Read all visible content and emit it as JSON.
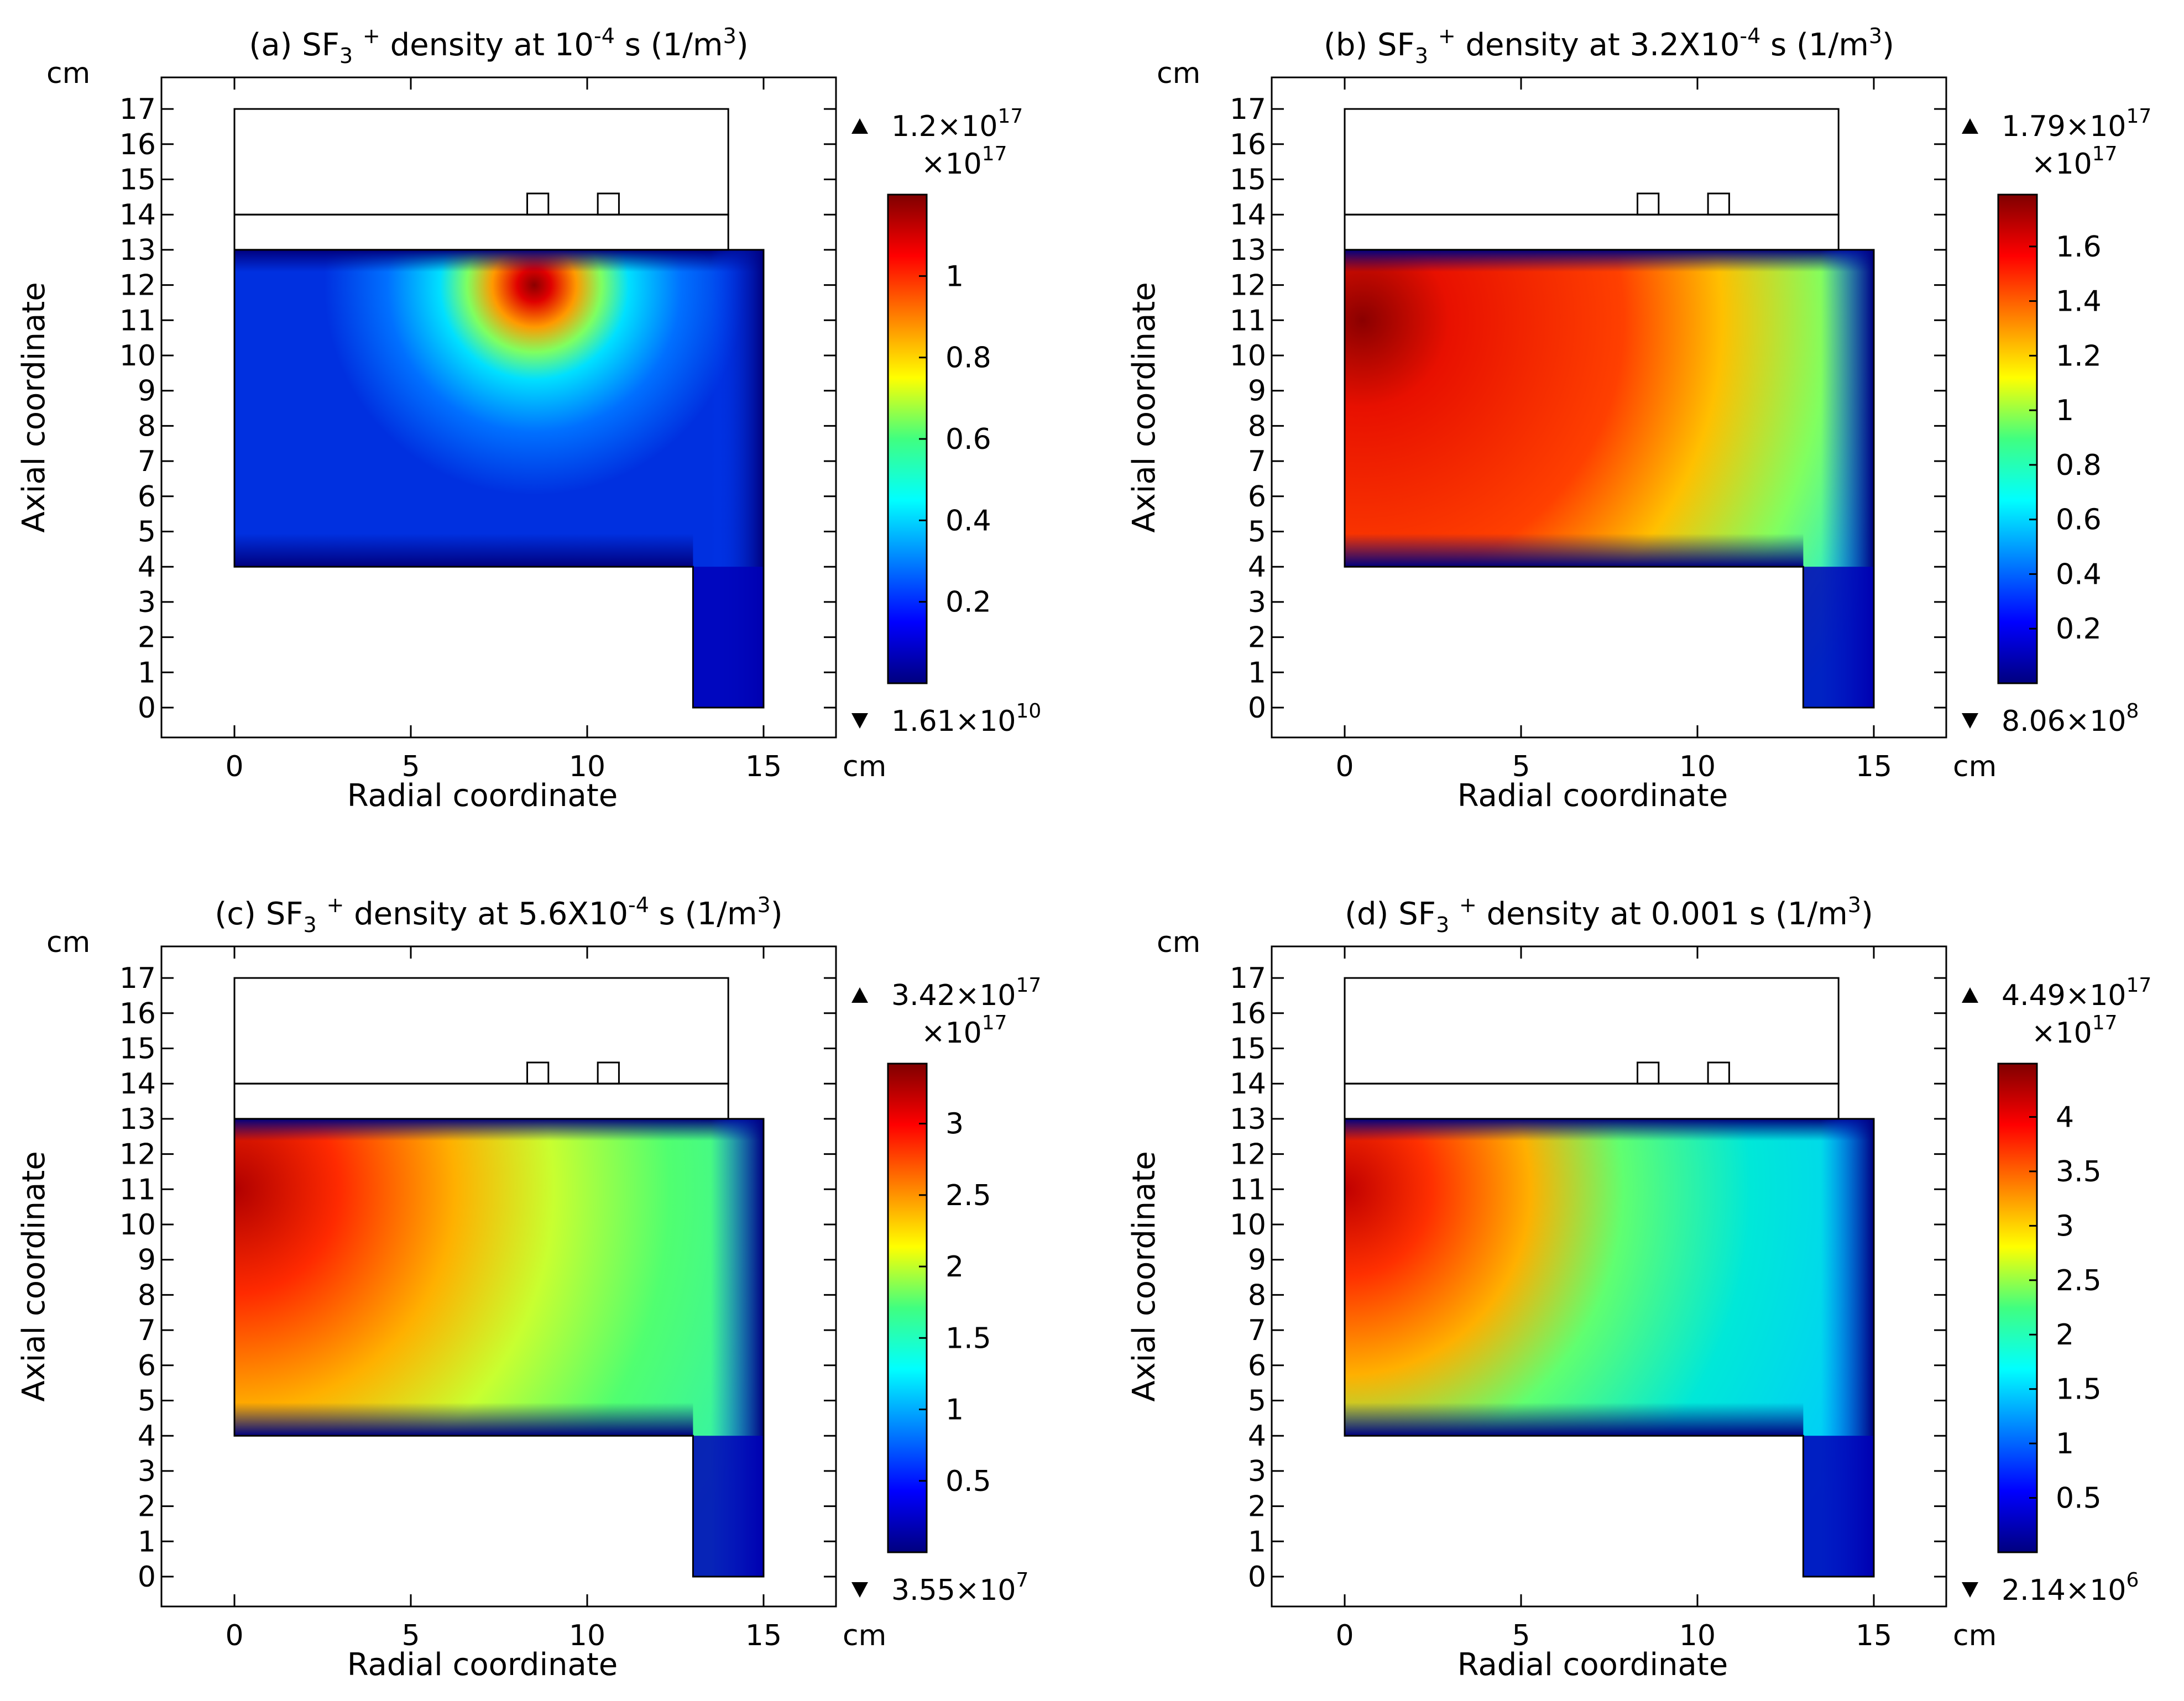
{
  "colorscale": [
    "#00007f",
    "#0000ff",
    "#0080ff",
    "#00ffff",
    "#40ff80",
    "#ffff00",
    "#ff8000",
    "#ff0000",
    "#7f0000"
  ],
  "chart_data": [
    {
      "type": "heatmap",
      "title": {
        "pre": "(a) SF",
        "sub": "3",
        "sup1": "+",
        "mid": " density at 10",
        "sup2": "-4",
        "post": " s (1/m",
        "sup3": "3",
        "end": ")"
      },
      "xlabel": "Radial coordinate",
      "ylabel": "Axial coordinate",
      "x_unit": "cm",
      "y_unit": "cm",
      "xlim": [
        -2,
        17
      ],
      "ylim": [
        -0.8,
        17.8
      ],
      "x_ticks": [
        0,
        5,
        10,
        15
      ],
      "y_ticks": [
        0,
        1,
        2,
        3,
        4,
        5,
        6,
        7,
        8,
        9,
        10,
        11,
        12,
        13,
        14,
        15,
        16,
        17
      ],
      "colorbar": {
        "max_mark": "1.2×10",
        "max_exp": "17",
        "min_mark": "1.61×10",
        "min_exp": "10",
        "multiplier": "×10",
        "multiplier_exp": "17",
        "range": [
          0,
          1.2
        ],
        "ticks": [
          "0.2",
          "0.4",
          "0.6",
          "0.8",
          "1"
        ],
        "tick_values": [
          0.2,
          0.4,
          0.6,
          0.8,
          1.0
        ]
      },
      "peak": {
        "r": 8.5,
        "z": 12.0,
        "value": 1.2
      }
    },
    {
      "type": "heatmap",
      "title": {
        "pre": "(b) SF",
        "sub": "3",
        "sup1": "+",
        "mid": " density at 3.2X10",
        "sup2": "-4",
        "post": " s (1/m",
        "sup3": "3",
        "end": ")"
      },
      "xlabel": "Radial coordinate",
      "ylabel": "Axial coordinate",
      "x_unit": "cm",
      "y_unit": "cm",
      "xlim": [
        -2,
        17
      ],
      "ylim": [
        -0.8,
        17.8
      ],
      "x_ticks": [
        0,
        5,
        10,
        15
      ],
      "y_ticks": [
        0,
        1,
        2,
        3,
        4,
        5,
        6,
        7,
        8,
        9,
        10,
        11,
        12,
        13,
        14,
        15,
        16,
        17
      ],
      "colorbar": {
        "max_mark": "1.79×10",
        "max_exp": "17",
        "min_mark": "8.06×10",
        "min_exp": "8",
        "multiplier": "×10",
        "multiplier_exp": "17",
        "range": [
          0,
          1.79
        ],
        "ticks": [
          "0.2",
          "0.4",
          "0.6",
          "0.8",
          "1",
          "1.2",
          "1.4",
          "1.6"
        ],
        "tick_values": [
          0.2,
          0.4,
          0.6,
          0.8,
          1.0,
          1.2,
          1.4,
          1.6
        ]
      },
      "peak": {
        "r": 0.5,
        "z": 11.0,
        "value": 1.79
      }
    },
    {
      "type": "heatmap",
      "title": {
        "pre": "(c) SF",
        "sub": "3",
        "sup1": "+",
        "mid": " density at 5.6X10",
        "sup2": "-4",
        "post": " s (1/m",
        "sup3": "3",
        "end": ")"
      },
      "xlabel": "Radial coordinate",
      "ylabel": "Axial coordinate",
      "x_unit": "cm",
      "y_unit": "cm",
      "xlim": [
        -2,
        17
      ],
      "ylim": [
        -0.8,
        17.8
      ],
      "x_ticks": [
        0,
        5,
        10,
        15
      ],
      "y_ticks": [
        0,
        1,
        2,
        3,
        4,
        5,
        6,
        7,
        8,
        9,
        10,
        11,
        12,
        13,
        14,
        15,
        16,
        17
      ],
      "colorbar": {
        "max_mark": "3.42×10",
        "max_exp": "17",
        "min_mark": "3.55×10",
        "min_exp": "7",
        "multiplier": "×10",
        "multiplier_exp": "17",
        "range": [
          0,
          3.42
        ],
        "ticks": [
          "0.5",
          "1",
          "1.5",
          "2",
          "2.5",
          "3"
        ],
        "tick_values": [
          0.5,
          1.0,
          1.5,
          2.0,
          2.5,
          3.0
        ]
      },
      "peak": {
        "r": 0.0,
        "z": 11.0,
        "value": 3.42
      }
    },
    {
      "type": "heatmap",
      "title": {
        "pre": "(d) SF",
        "sub": "3",
        "sup1": "+",
        "mid": " density at 0.001 s (1/m",
        "sup2": "",
        "post": "",
        "sup3": "3",
        "end": ")"
      },
      "xlabel": "Radial coordinate",
      "ylabel": "Axial coordinate",
      "x_unit": "cm",
      "y_unit": "cm",
      "xlim": [
        -2,
        17
      ],
      "ylim": [
        -0.8,
        17.8
      ],
      "x_ticks": [
        0,
        5,
        10,
        15
      ],
      "y_ticks": [
        0,
        1,
        2,
        3,
        4,
        5,
        6,
        7,
        8,
        9,
        10,
        11,
        12,
        13,
        14,
        15,
        16,
        17
      ],
      "colorbar": {
        "max_mark": "4.49×10",
        "max_exp": "17",
        "min_mark": "2.14×10",
        "min_exp": "6",
        "multiplier": "×10",
        "multiplier_exp": "17",
        "range": [
          0,
          4.49
        ],
        "ticks": [
          "0.5",
          "1",
          "1.5",
          "2",
          "2.5",
          "3",
          "3.5",
          "4"
        ],
        "tick_values": [
          0.5,
          1.0,
          1.5,
          2.0,
          2.5,
          3.0,
          3.5,
          4.0
        ]
      },
      "peak": {
        "r": 0.0,
        "z": 11.0,
        "value": 4.49
      }
    }
  ]
}
